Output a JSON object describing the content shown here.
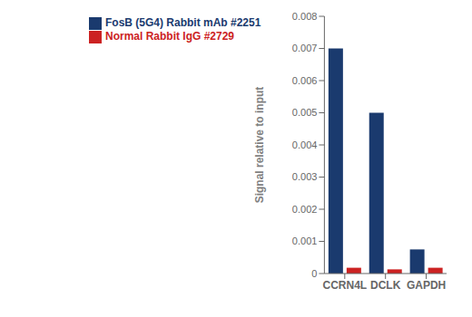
{
  "chart_data": {
    "type": "bar",
    "categories": [
      "CCRN4L",
      "DCLK",
      "GAPDH"
    ],
    "series": [
      {
        "name": "FosB (5G4) Rabbit mAb #2251",
        "color": "#1a3a6e",
        "values": [
          0.007,
          0.005,
          0.00075
        ]
      },
      {
        "name": "Normal Rabbit IgG #2729",
        "color": "#cc2222",
        "values": [
          0.00018,
          0.00013,
          0.00018
        ]
      }
    ],
    "ylabel": "Signal relative to input",
    "ylim": [
      0,
      0.008
    ],
    "yticks": [
      0,
      0.001,
      0.002,
      0.003,
      0.004,
      0.005,
      0.006,
      0.007,
      0.008
    ],
    "grid": false,
    "legend": "upper left"
  }
}
